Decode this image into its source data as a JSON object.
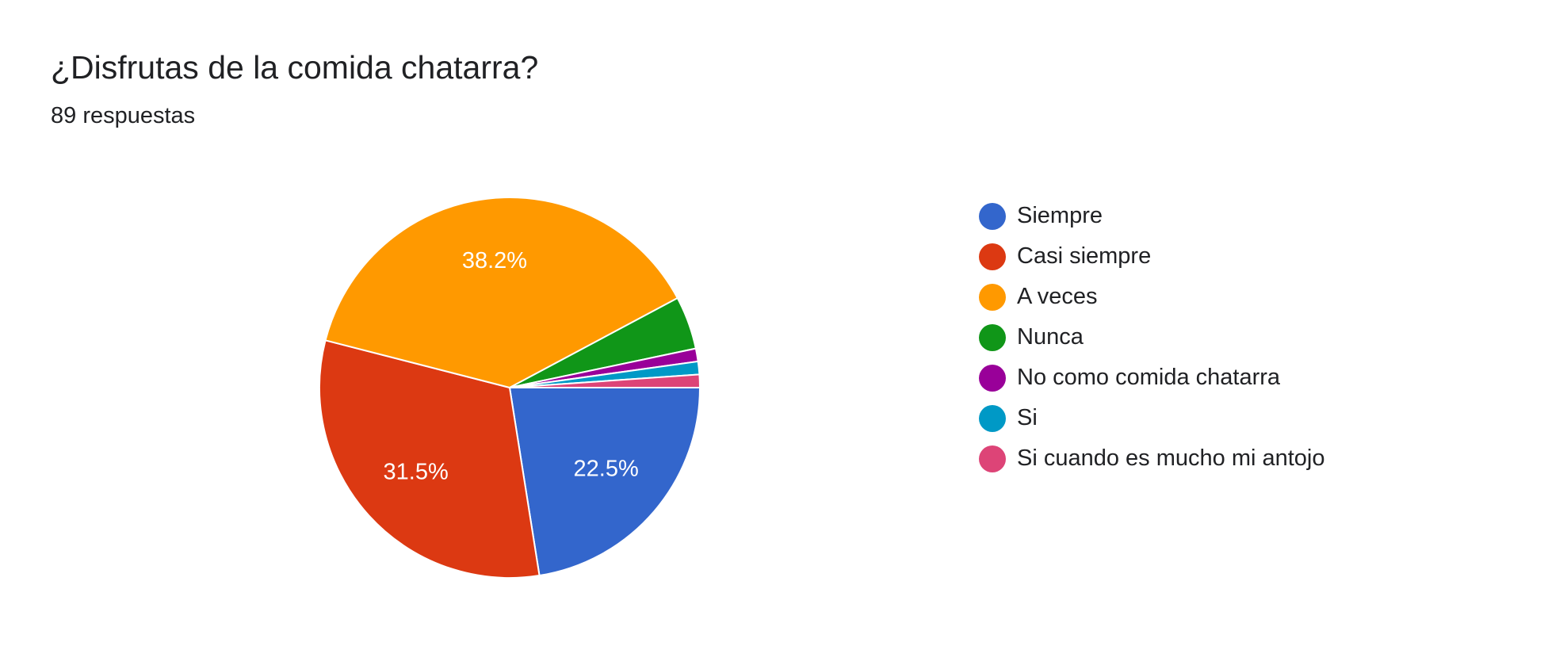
{
  "chart_data": {
    "type": "pie",
    "title": "¿Disfrutas de la comida chatarra?",
    "subtitle": "89 respuestas",
    "categories": [
      "Siempre",
      "Casi siempre",
      "A veces",
      "Nunca",
      "No como comida chatarra",
      "Si",
      "Si cuando es mucho mi antojo"
    ],
    "values": [
      22.5,
      31.5,
      38.2,
      4.5,
      1.1,
      1.1,
      1.1
    ],
    "data_labels": [
      "22.5%",
      "31.5%",
      "38.2%",
      "",
      "",
      "",
      ""
    ],
    "colors": [
      "#3366cc",
      "#dc3912",
      "#ff9900",
      "#109618",
      "#990099",
      "#0099c6",
      "#dd4477"
    ],
    "legend_position": "right"
  }
}
